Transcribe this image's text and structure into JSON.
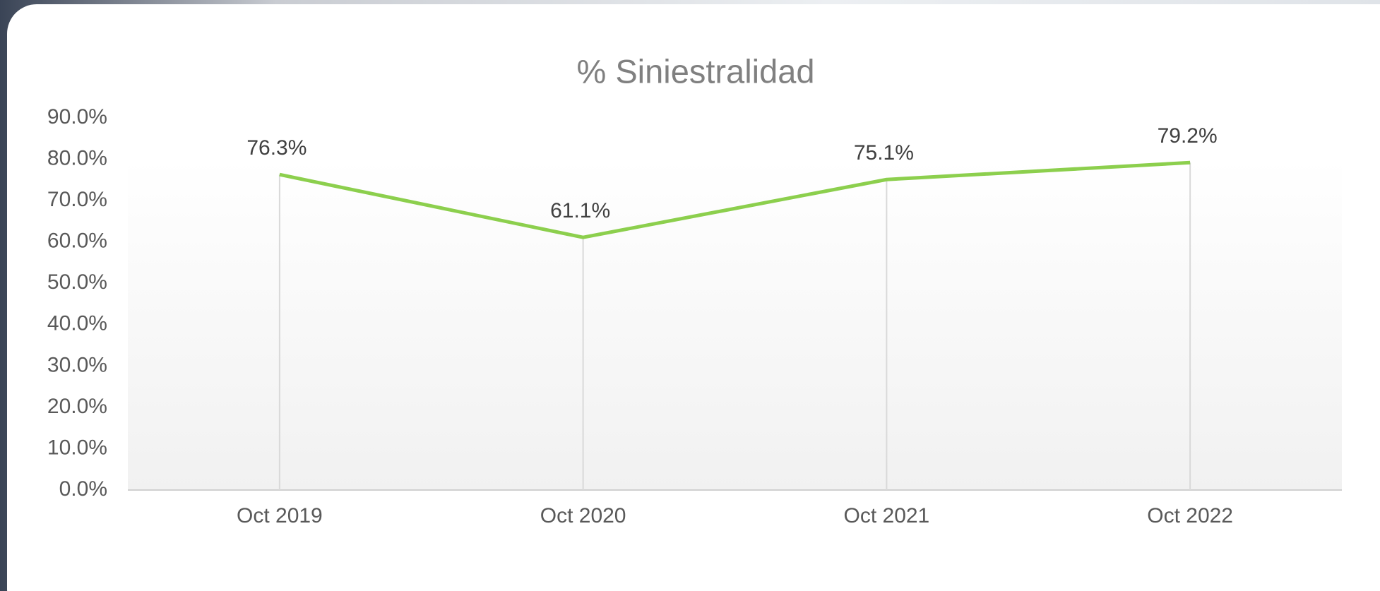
{
  "chart_data": {
    "type": "line",
    "title": "% Siniestralidad",
    "categories": [
      "Oct 2019",
      "Oct 2020",
      "Oct 2021",
      "Oct 2022"
    ],
    "series": [
      {
        "name": "% Siniestralidad",
        "color": "#8ccf4d",
        "values": [
          76.3,
          61.1,
          75.1,
          79.2
        ],
        "value_labels": [
          "76.3%",
          "61.1%",
          "75.1%",
          "79.2%"
        ]
      }
    ],
    "ylim": [
      0,
      90
    ],
    "yticks": [
      {
        "value": 0,
        "label": "0.0%"
      },
      {
        "value": 10,
        "label": "10.0%"
      },
      {
        "value": 20,
        "label": "20.0%"
      },
      {
        "value": 30,
        "label": "30.0%"
      },
      {
        "value": 40,
        "label": "40.0%"
      },
      {
        "value": 50,
        "label": "50.0%"
      },
      {
        "value": 60,
        "label": "60.0%"
      },
      {
        "value": 70,
        "label": "70.0%"
      },
      {
        "value": 80,
        "label": "80.0%"
      },
      {
        "value": 90,
        "label": "90.0%"
      }
    ],
    "drop_lines": true
  }
}
